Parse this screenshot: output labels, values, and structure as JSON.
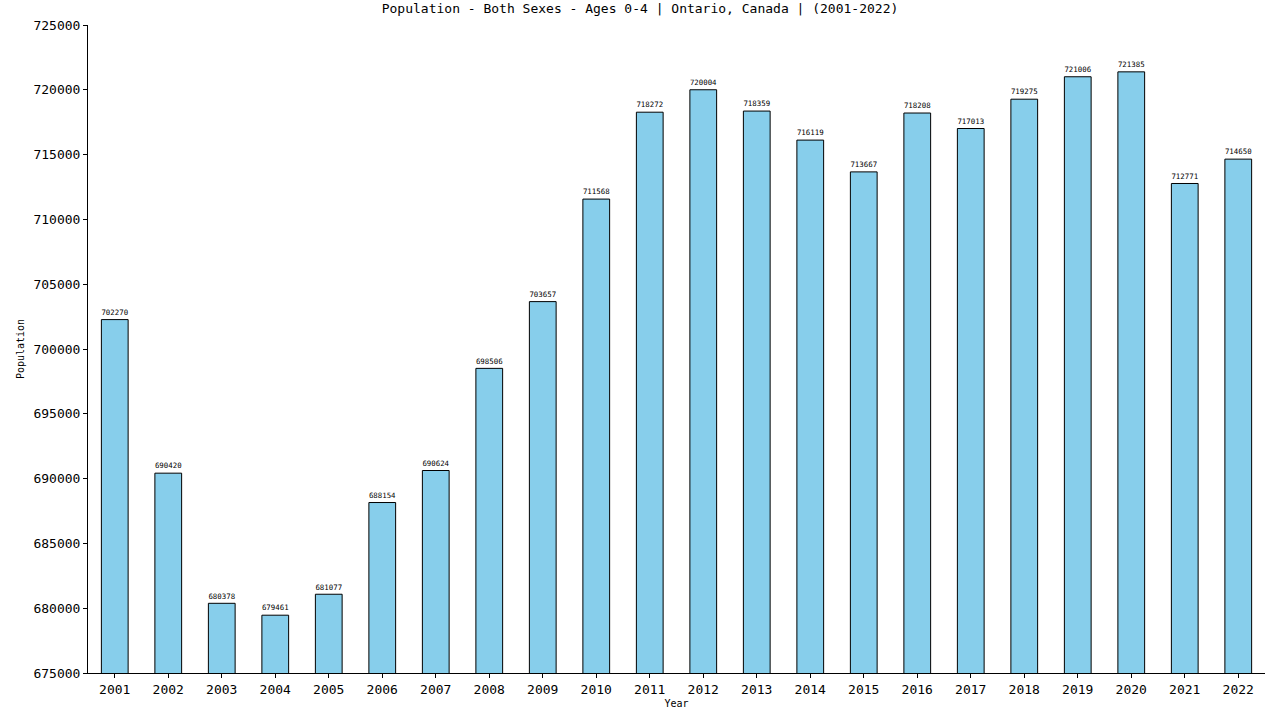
{
  "chart_data": {
    "type": "bar",
    "title": "Population - Both Sexes - Ages 0-4 | Ontario, Canada | (2001-2022)",
    "x_label": "Year",
    "y_label": "Population",
    "categories": [
      "2001",
      "2002",
      "2003",
      "2004",
      "2005",
      "2006",
      "2007",
      "2008",
      "2009",
      "2010",
      "2011",
      "2012",
      "2013",
      "2014",
      "2015",
      "2016",
      "2017",
      "2018",
      "2019",
      "2020",
      "2021",
      "2022"
    ],
    "values": [
      702270,
      690420,
      680378,
      679461,
      681077,
      688154,
      690624,
      698506,
      703657,
      711568,
      718272,
      720004,
      718359,
      716119,
      713667,
      718208,
      717013,
      719275,
      721006,
      721385,
      712771,
      714650
    ],
    "color": "#87ceeb",
    "ylim": [
      675000,
      725000
    ],
    "yticks": [
      675000,
      680000,
      685000,
      690000,
      695000,
      700000,
      705000,
      710000,
      715000,
      720000,
      725000
    ],
    "grid": false,
    "data_labels": true
  }
}
